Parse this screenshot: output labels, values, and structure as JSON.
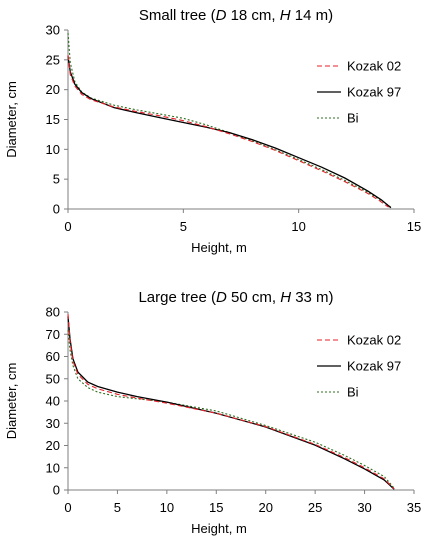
{
  "chart_data": [
    {
      "type": "line",
      "title": {
        "pre": "Small tree (",
        "d_var": "D",
        "d_val": " 18 cm, ",
        "h_var": "H",
        "h_val": " 14 m)"
      },
      "xlabel": "Height, m",
      "ylabel": "Diameter, cm",
      "xlim": [
        0,
        15
      ],
      "ylim": [
        0,
        30
      ],
      "xticks": [
        0,
        5,
        10,
        15
      ],
      "yticks": [
        0,
        5,
        10,
        15,
        20,
        25,
        30
      ],
      "grid": false,
      "legend_position": "top-right",
      "series": [
        {
          "name": "Kozak 02",
          "color": "#e8202a",
          "dash": "5,3",
          "points": [
            [
              0,
              25.8
            ],
            [
              0.1,
              22.5
            ],
            [
              0.3,
              20.6
            ],
            [
              0.6,
              19.2
            ],
            [
              1.0,
              18.3
            ],
            [
              2.0,
              17.1
            ],
            [
              3.0,
              16.3
            ],
            [
              4.0,
              15.6
            ],
            [
              5.0,
              14.8
            ],
            [
              6.0,
              13.8
            ],
            [
              7.0,
              12.6
            ],
            [
              8.0,
              11.3
            ],
            [
              9.0,
              9.8
            ],
            [
              10.0,
              8.1
            ],
            [
              11.0,
              6.4
            ],
            [
              12.0,
              4.6
            ],
            [
              13.0,
              2.6
            ],
            [
              13.5,
              1.4
            ],
            [
              13.9,
              0.3
            ]
          ]
        },
        {
          "name": "Kozak 97",
          "color": "#000000",
          "dash": "",
          "points": [
            [
              0,
              25.6
            ],
            [
              0.1,
              23.0
            ],
            [
              0.3,
              20.9
            ],
            [
              0.6,
              19.5
            ],
            [
              1.0,
              18.5
            ],
            [
              2.0,
              17.0
            ],
            [
              3.0,
              16.1
            ],
            [
              4.0,
              15.3
            ],
            [
              5.0,
              14.5
            ],
            [
              6.0,
              13.7
            ],
            [
              7.0,
              12.8
            ],
            [
              8.0,
              11.6
            ],
            [
              9.0,
              10.2
            ],
            [
              10.0,
              8.6
            ],
            [
              11.0,
              7.0
            ],
            [
              12.0,
              5.2
            ],
            [
              13.0,
              3.0
            ],
            [
              13.6,
              1.5
            ],
            [
              14.0,
              0.2
            ]
          ]
        },
        {
          "name": "Bi",
          "color": "#2e6e1f",
          "dash": "2,2",
          "points": [
            [
              0,
              29.5
            ],
            [
              0.1,
              24.5
            ],
            [
              0.3,
              21.3
            ],
            [
              0.6,
              19.6
            ],
            [
              1.0,
              18.6
            ],
            [
              2.0,
              17.4
            ],
            [
              3.0,
              16.6
            ],
            [
              4.0,
              15.9
            ],
            [
              5.0,
              15.2
            ],
            [
              6.0,
              14.1
            ],
            [
              7.0,
              12.8
            ],
            [
              8.0,
              11.4
            ],
            [
              9.0,
              9.9
            ],
            [
              10.0,
              8.3
            ],
            [
              11.0,
              6.6
            ],
            [
              12.0,
              4.8
            ],
            [
              13.0,
              2.8
            ],
            [
              13.6,
              1.4
            ],
            [
              14.0,
              0.3
            ]
          ]
        }
      ]
    },
    {
      "type": "line",
      "title": {
        "pre": "Large tree (",
        "d_var": "D",
        "d_val": " 50 cm, ",
        "h_var": "H",
        "h_val": " 33 m)"
      },
      "xlabel": "Height, m",
      "ylabel": "Diameter, cm",
      "xlim": [
        0,
        35
      ],
      "ylim": [
        0,
        80
      ],
      "xticks": [
        0,
        5,
        10,
        15,
        20,
        25,
        30,
        35
      ],
      "yticks": [
        0,
        10,
        20,
        30,
        40,
        50,
        60,
        70,
        80
      ],
      "grid": false,
      "legend_position": "top-right",
      "series": [
        {
          "name": "Kozak 02",
          "color": "#e8202a",
          "dash": "5,3",
          "points": [
            [
              0,
              79
            ],
            [
              0.2,
              67
            ],
            [
              0.5,
              58
            ],
            [
              1.0,
              52
            ],
            [
              2.0,
              47.5
            ],
            [
              3.0,
              45.5
            ],
            [
              5.0,
              43.0
            ],
            [
              7.0,
              41.3
            ],
            [
              10.0,
              39.0
            ],
            [
              15.0,
              34.5
            ],
            [
              20.0,
              28.5
            ],
            [
              25.0,
              20.5
            ],
            [
              28.0,
              14.5
            ],
            [
              30.0,
              10.0
            ],
            [
              32.0,
              5.0
            ],
            [
              33.0,
              0.5
            ]
          ]
        },
        {
          "name": "Kozak 97",
          "color": "#000000",
          "dash": "",
          "points": [
            [
              0,
              78
            ],
            [
              0.2,
              68
            ],
            [
              0.5,
              59
            ],
            [
              1.0,
              53
            ],
            [
              2.0,
              48.5
            ],
            [
              3.0,
              46.5
            ],
            [
              5.0,
              44.0
            ],
            [
              7.0,
              42.0
            ],
            [
              10.0,
              39.5
            ],
            [
              15.0,
              34.5
            ],
            [
              20.0,
              28.3
            ],
            [
              25.0,
              20.2
            ],
            [
              28.0,
              14.0
            ],
            [
              30.0,
              9.5
            ],
            [
              32.0,
              4.5
            ],
            [
              33.0,
              0.3
            ]
          ]
        },
        {
          "name": "Bi",
          "color": "#2e6e1f",
          "dash": "2,2",
          "points": [
            [
              0,
              72
            ],
            [
              0.2,
              63
            ],
            [
              0.5,
              56
            ],
            [
              1.0,
              50
            ],
            [
              2.0,
              46.0
            ],
            [
              3.0,
              44.0
            ],
            [
              5.0,
              42.0
            ],
            [
              7.0,
              41.0
            ],
            [
              10.0,
              39.5
            ],
            [
              15.0,
              35.5
            ],
            [
              20.0,
              29.0
            ],
            [
              25.0,
              21.5
            ],
            [
              28.0,
              15.5
            ],
            [
              30.0,
              11.0
            ],
            [
              32.0,
              6.0
            ],
            [
              33.0,
              0.8
            ]
          ]
        }
      ]
    }
  ]
}
